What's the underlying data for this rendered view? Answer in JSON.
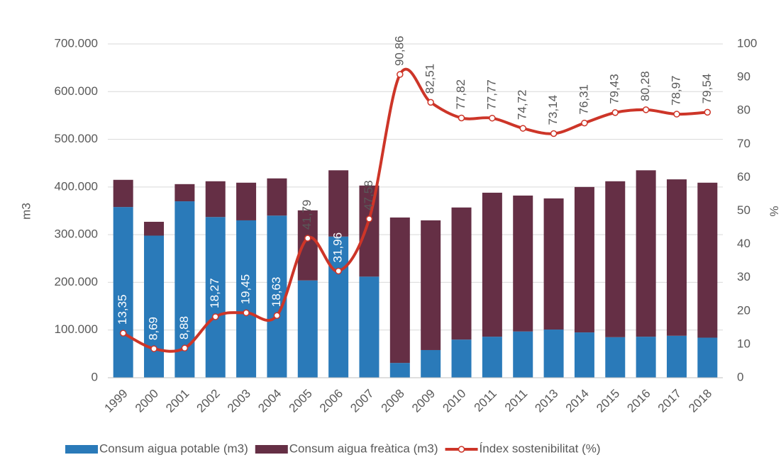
{
  "chart_data": {
    "type": "bar-line",
    "categories": [
      "1999",
      "2000",
      "2001",
      "2002",
      "2003",
      "2004",
      "2005",
      "2006",
      "2007",
      "2008",
      "2009",
      "2010",
      "2011",
      "2011",
      "2013",
      "2014",
      "2015",
      "2016",
      "2017",
      "2018"
    ],
    "series": [
      {
        "name": "Consum aigua potable (m3)",
        "color": "#2a7ab9",
        "type": "bar",
        "values": [
          358000,
          298000,
          370000,
          337000,
          330000,
          340000,
          204000,
          296000,
          212000,
          31000,
          58000,
          80000,
          86000,
          97000,
          101000,
          95000,
          85000,
          86000,
          88000,
          84000
        ]
      },
      {
        "name": "Consum aigua freàtica (m3)",
        "color": "#652f45",
        "type": "bar",
        "values": [
          57000,
          29000,
          36000,
          75000,
          79000,
          78000,
          147000,
          139000,
          191000,
          305000,
          272000,
          277000,
          302000,
          285000,
          275000,
          305000,
          327000,
          349000,
          328000,
          325000
        ]
      },
      {
        "name": "Índex sostenibilitat (%)",
        "color": "#cd3528",
        "type": "line",
        "axis": "y2",
        "values": [
          13.35,
          8.69,
          8.88,
          18.27,
          19.45,
          18.63,
          41.79,
          31.96,
          47.58,
          90.86,
          82.51,
          77.82,
          77.77,
          74.72,
          73.14,
          76.31,
          79.43,
          80.28,
          78.97,
          79.54
        ],
        "value_labels": [
          "13,35",
          "8,69",
          "8,88",
          "18,27",
          "19,45",
          "18,63",
          "41,79",
          "31,96",
          "47,58",
          "90,86",
          "82,51",
          "77,82",
          "77,77",
          "74,72",
          "73,14",
          "76,31",
          "79,43",
          "80,28",
          "78,97",
          "79,54"
        ]
      }
    ],
    "ylabel": "m3",
    "y2label": "%",
    "ylim": [
      0,
      700000
    ],
    "yticks": [
      0,
      {
        "value": 100000,
        "label": "100.000"
      },
      {
        "value": 200000,
        "label": "200.000"
      },
      {
        "value": 300000,
        "label": "300.000"
      },
      {
        "value": 400000,
        "label": "400.000"
      },
      {
        "value": 500000,
        "label": "500.000"
      },
      {
        "value": 600000,
        "label": "600.000"
      },
      {
        "value": 700000,
        "label": "700.000"
      }
    ],
    "y2lim": [
      0,
      100
    ],
    "y2ticks": [
      0,
      10,
      20,
      30,
      40,
      50,
      60,
      70,
      80,
      90,
      100
    ],
    "grid": true
  }
}
